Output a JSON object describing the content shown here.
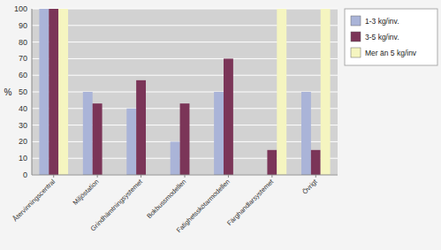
{
  "chart_data": {
    "type": "bar",
    "categories": [
      "Återvinningscentral",
      "Miljöstation",
      "Grindhämtningsystemet",
      "Bokbussmodellen",
      "Fatighetsskötarmodellen",
      "Färghandlarsystemet",
      "Övrigt"
    ],
    "series": [
      {
        "name": "1-3 kg/inv.",
        "color": "#aab4d8",
        "values": [
          100,
          50,
          40,
          20,
          50,
          0,
          50
        ]
      },
      {
        "name": "3-5 kg/inv.",
        "color": "#7b3558",
        "values": [
          100,
          43,
          57,
          43,
          70,
          15,
          15
        ]
      },
      {
        "name": "Mer än 5 kg/inv",
        "color": "#f5f5c0",
        "values": [
          100,
          0,
          0,
          0,
          0,
          100,
          100
        ]
      }
    ],
    "ylabel": "%",
    "ylim": [
      0,
      100
    ],
    "yticks": [
      0,
      10,
      20,
      30,
      40,
      50,
      60,
      70,
      80,
      90,
      100
    ],
    "grid": true,
    "legend": "right"
  }
}
